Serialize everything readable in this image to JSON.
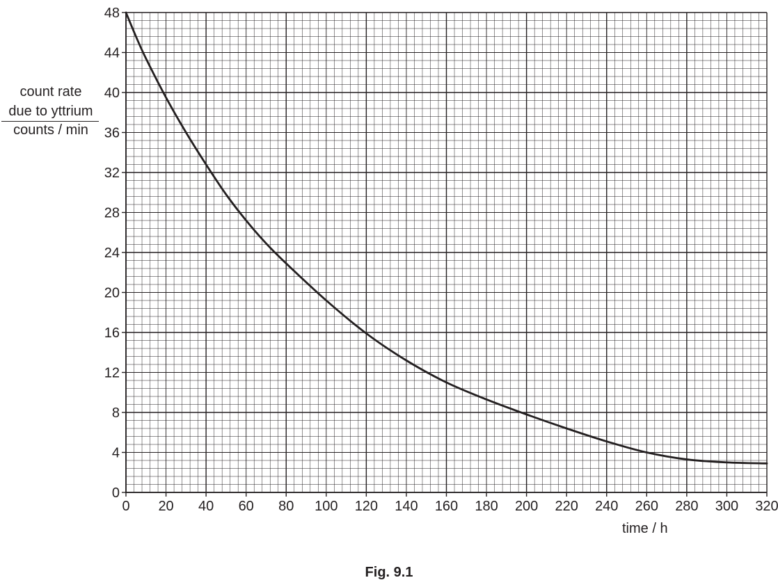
{
  "chart_data": {
    "type": "line",
    "xlabel": "time / h",
    "ylabel_lines": [
      "count rate",
      "due to yttrium",
      "counts / min"
    ],
    "xlim": [
      0,
      320
    ],
    "ylim": [
      0,
      48
    ],
    "x_major_step": 40,
    "x_minor_step": 4,
    "y_major_step": 8,
    "y_minor_step": 0.8,
    "x_ticks": [
      0,
      20,
      40,
      60,
      80,
      100,
      120,
      140,
      160,
      180,
      200,
      220,
      240,
      260,
      280,
      300,
      320
    ],
    "y_ticks": [
      0,
      4,
      8,
      12,
      16,
      20,
      24,
      28,
      32,
      36,
      40,
      44,
      48
    ],
    "grid": true,
    "series": [
      {
        "x": [
          0,
          5,
          10,
          20,
          30,
          40,
          50,
          60,
          70,
          80,
          100,
          120,
          140,
          160,
          180,
          200,
          220,
          240,
          260,
          280,
          300,
          320
        ],
        "y": [
          48,
          45.6,
          43.4,
          39.5,
          36,
          32.8,
          29.8,
          27.2,
          24.9,
          22.9,
          19.2,
          15.9,
          13.2,
          11,
          9.3,
          7.8,
          6.4,
          5.1,
          4,
          3.3,
          3,
          2.9
        ]
      }
    ]
  },
  "caption": "Fig. 9.1"
}
